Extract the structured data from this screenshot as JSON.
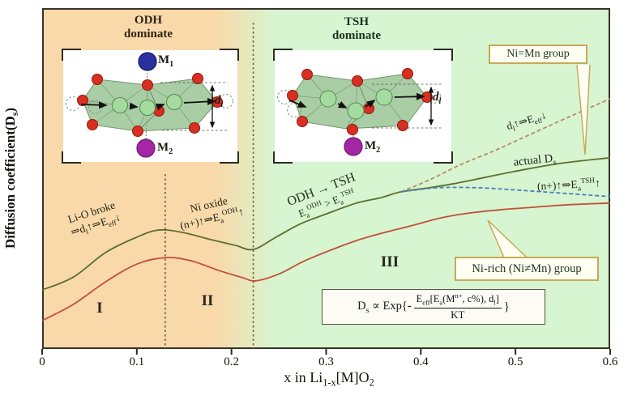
{
  "figure": {
    "y_axis_label_html": "Diffusion coefficient(D<sub>s</sub>)",
    "x_axis_label_html": "x in Li<sub>1-x</sub>[M]O<sub>2</sub>",
    "x_tick_labels": [
      "0",
      "0.1",
      "0.2",
      "0.3",
      "0.4",
      "0.5",
      "0.6"
    ]
  },
  "regions": {
    "odh_title_line1": "ODH",
    "odh_title_line2": "dominate",
    "tsh_title_line1": "TSH",
    "tsh_title_line2": "dominate",
    "zone1": "I",
    "zone2": "II",
    "zone3": "III"
  },
  "annotations": {
    "li_o_broke_line1": "Li-O broke",
    "li_o_broke_line2_html": "⇒d<sub>l</sub>↑⇒E<sub>eff</sub>↓",
    "ni_oxide_line1": "Ni oxide",
    "ni_oxide_line2_html": "(n+)↑⇒E<sub>a</sub><sup>ODH</sup>↑",
    "odh_tsh_line1": "ODH → TSH",
    "odh_tsh_line2_html": "E<sub>a</sub><sup>ODH</sup> &gt; E<sub>a</sub><sup>TSH</sup>",
    "d_eff_html": "d<sub>l</sub>↑⇒E<sub>eff</sub>↓",
    "actual_ds_html": "actual D<sub>s</sub>",
    "n_tsh_html": "(n+)↑⇒E<sub>a</sub><sup>TSH</sup>↑"
  },
  "callouts": {
    "ni_mn_group": "Ni=Mn group",
    "ni_rich_group": "Ni-rich (Ni≠Mn) group"
  },
  "formula": {
    "prefix_html": "D<sub>s</sub> ∝ Exp{-",
    "numerator_html": "E<sub>eff</sub>[E<sub>a</sub>(M<sup>n+</sup>, c%), d<sub>l</sub>]",
    "denominator": "KT",
    "suffix": "}"
  },
  "insets": {
    "odh": {
      "m1_html": "M<sub>1</sub>",
      "m2_html": "M<sub>2</sub>",
      "dl_html": "d<sub>l</sub>"
    },
    "tsh": {
      "m2_html": "M<sub>2</sub>",
      "dl_html": "d<sub>l</sub>"
    }
  },
  "colors": {
    "odh_background": "#f9d9a9",
    "tsh_background": "#d6f5d0",
    "actual_ds_curve": "#5e6e2c",
    "ni_rich_curve": "#c3503a",
    "d_eff_trend_dashed": "#bc8a6a",
    "n_tsh_trend_dashed": "#4a7fc1",
    "callout_border": "#c9a959",
    "m1_atom": "#2a2f9e",
    "m2_atom": "#a526a5",
    "oxygen_atom": "#d92f21",
    "li_ion": "#a6dba0"
  },
  "chart_data": {
    "type": "line",
    "title": "",
    "xlabel": "x in Li1-x[M]O2",
    "ylabel": "Diffusion coefficient(Ds)",
    "xlim": [
      0,
      0.6
    ],
    "x_ticks": [
      0,
      0.1,
      0.2,
      0.3,
      0.4,
      0.5,
      0.6
    ],
    "ylim": [
      0,
      1
    ],
    "y_axis_note": "no numeric y ticks shown; values are relative diffusion coefficient (arbitrary units)",
    "grid": false,
    "legend": "in-plot text labels and callouts instead of legend box",
    "region_boundaries_x": [
      0.13,
      0.223
    ],
    "regions": [
      {
        "label": "I",
        "x_range": [
          0,
          0.13
        ],
        "mechanism": "ODH dominate"
      },
      {
        "label": "II",
        "x_range": [
          0.13,
          0.223
        ],
        "mechanism": "ODH dominate"
      },
      {
        "label": "III",
        "x_range": [
          0.223,
          0.6
        ],
        "mechanism": "TSH dominate"
      }
    ],
    "series": [
      {
        "id": "actual-ds-nimn",
        "name": "actual Ds (Ni=Mn group)",
        "style": "solid",
        "color": "#5e6e2c",
        "points": [
          [
            0,
            0.173
          ],
          [
            0.033,
            0.211
          ],
          [
            0.067,
            0.283
          ],
          [
            0.1,
            0.328
          ],
          [
            0.123,
            0.349
          ],
          [
            0.148,
            0.342
          ],
          [
            0.178,
            0.321
          ],
          [
            0.204,
            0.304
          ],
          [
            0.223,
            0.292
          ],
          [
            0.247,
            0.328
          ],
          [
            0.272,
            0.366
          ],
          [
            0.298,
            0.394
          ],
          [
            0.332,
            0.428
          ],
          [
            0.358,
            0.444
          ],
          [
            0.379,
            0.461
          ],
          [
            0.409,
            0.473
          ],
          [
            0.435,
            0.485
          ],
          [
            0.469,
            0.504
          ],
          [
            0.503,
            0.523
          ],
          [
            0.546,
            0.544
          ],
          [
            0.6,
            0.561
          ]
        ]
      },
      {
        "id": "ni-rich",
        "name": "Ni-rich (Ni≠Mn) group",
        "style": "solid",
        "color": "#c3503a",
        "points": [
          [
            0,
            0.083
          ],
          [
            0.033,
            0.131
          ],
          [
            0.067,
            0.197
          ],
          [
            0.1,
            0.249
          ],
          [
            0.13,
            0.268
          ],
          [
            0.157,
            0.259
          ],
          [
            0.187,
            0.23
          ],
          [
            0.212,
            0.209
          ],
          [
            0.226,
            0.2
          ],
          [
            0.251,
            0.221
          ],
          [
            0.276,
            0.257
          ],
          [
            0.302,
            0.287
          ],
          [
            0.332,
            0.318
          ],
          [
            0.362,
            0.342
          ],
          [
            0.392,
            0.363
          ],
          [
            0.422,
            0.385
          ],
          [
            0.452,
            0.399
          ],
          [
            0.486,
            0.409
          ],
          [
            0.52,
            0.416
          ],
          [
            0.555,
            0.423
          ],
          [
            0.6,
            0.428
          ]
        ]
      },
      {
        "id": "d-eff-trend",
        "name": "dl↑ ⇒ Eeff↓ trend",
        "style": "dashed",
        "color": "#bc8a6a",
        "points": [
          [
            0.379,
            0.461
          ],
          [
            0.409,
            0.496
          ],
          [
            0.443,
            0.542
          ],
          [
            0.478,
            0.582
          ],
          [
            0.512,
            0.625
          ],
          [
            0.555,
            0.679
          ],
          [
            0.6,
            0.734
          ]
        ]
      },
      {
        "id": "n-tsh-trend",
        "name": "(n+)↑ ⇒ EaTSH↑ trend",
        "style": "dashed",
        "color": "#4a7fc1",
        "points": [
          [
            0.379,
            0.461
          ],
          [
            0.418,
            0.473
          ],
          [
            0.46,
            0.473
          ],
          [
            0.503,
            0.466
          ],
          [
            0.555,
            0.456
          ],
          [
            0.6,
            0.447
          ]
        ]
      }
    ]
  }
}
